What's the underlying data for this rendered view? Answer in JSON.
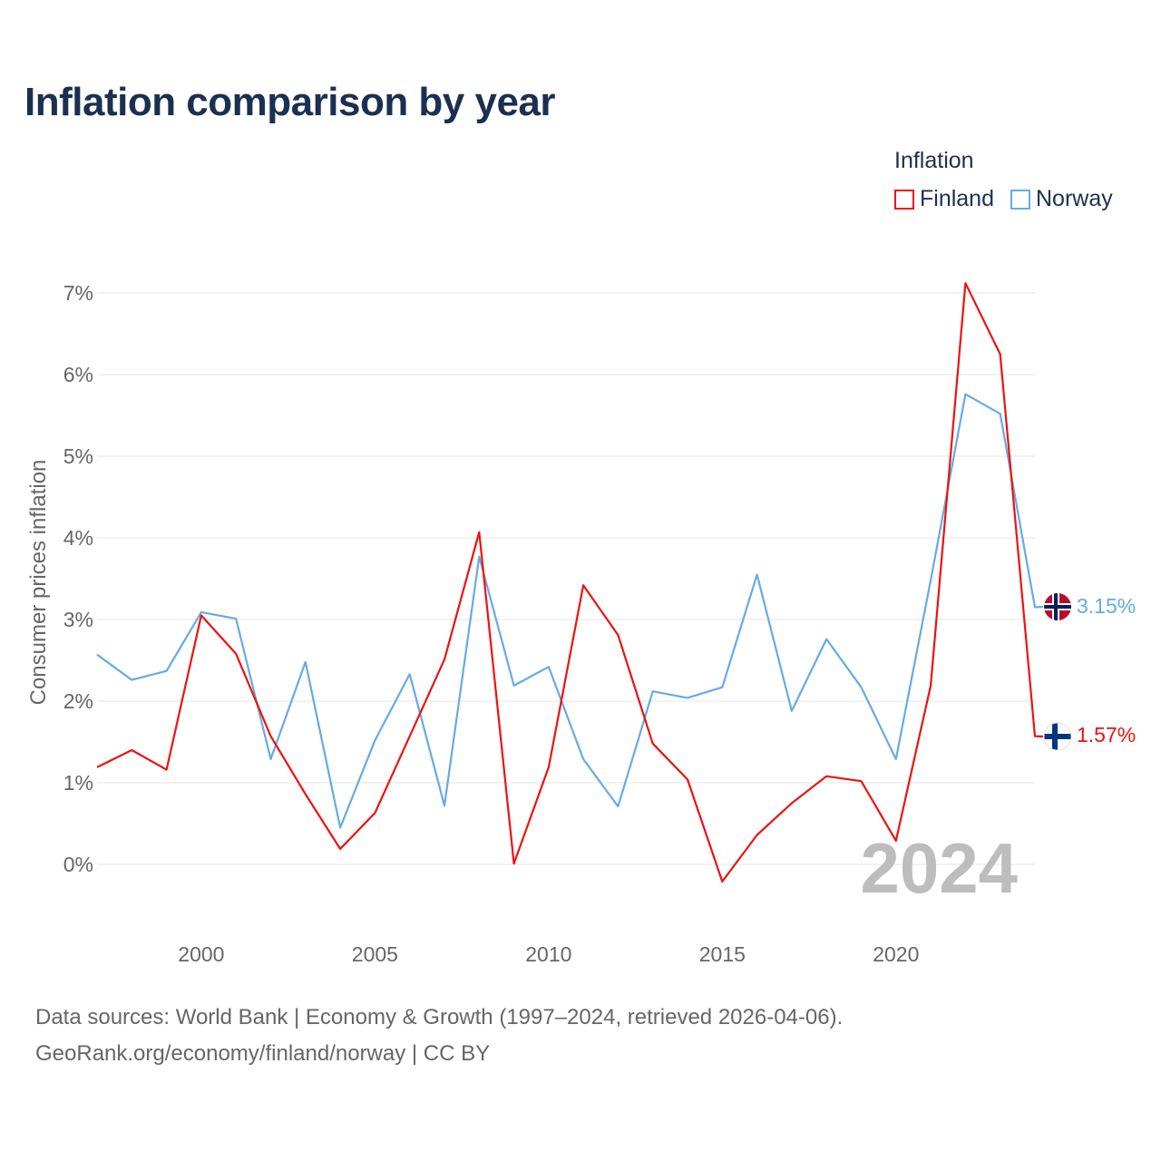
{
  "title": "Inflation comparison by year",
  "legend": {
    "title": "Inflation",
    "items": [
      {
        "label": "Finland",
        "color": "#ee1111"
      },
      {
        "label": "Norway",
        "color": "#66aae6"
      }
    ]
  },
  "footer": {
    "line1": "Data sources: World Bank | Economy & Growth (1997–2024, retrieved 2026-04-06).",
    "line2": "GeoRank.org/economy/finland/norway | CC BY"
  },
  "chart_data": {
    "type": "line",
    "title": "Inflation comparison by year",
    "xlabel": "",
    "ylabel": "Consumer prices inflation",
    "x": [
      1997,
      1998,
      1999,
      2000,
      2001,
      2002,
      2003,
      2004,
      2005,
      2006,
      2007,
      2008,
      2009,
      2010,
      2011,
      2012,
      2013,
      2014,
      2015,
      2016,
      2017,
      2018,
      2019,
      2020,
      2021,
      2022,
      2023,
      2024
    ],
    "xlim": [
      1997,
      2024
    ],
    "ylim": [
      -0.9,
      7.4
    ],
    "xticks": [
      2000,
      2005,
      2010,
      2015,
      2020
    ],
    "yticks": [
      0,
      1,
      2,
      3,
      4,
      5,
      6,
      7
    ],
    "ytick_labels": [
      "0%",
      "1%",
      "2%",
      "3%",
      "4%",
      "5%",
      "6%",
      "7%"
    ],
    "grid": true,
    "legend_position": "top-right",
    "watermark_year": "2024",
    "series": [
      {
        "name": "Finland",
        "color": "#ee1111",
        "end_label": "1.57%",
        "flag": "finland-flag",
        "values": [
          1.19,
          1.4,
          1.16,
          3.05,
          2.58,
          1.57,
          0.86,
          0.19,
          0.63,
          1.57,
          2.51,
          4.07,
          0.01,
          1.19,
          3.42,
          2.81,
          1.48,
          1.04,
          -0.21,
          0.36,
          0.75,
          1.08,
          1.02,
          0.29,
          2.19,
          7.12,
          6.25,
          1.57
        ]
      },
      {
        "name": "Norway",
        "color": "#66aae6",
        "end_label": "3.15%",
        "flag": "norway-flag",
        "values": [
          2.57,
          2.26,
          2.37,
          3.09,
          3.01,
          1.29,
          2.48,
          0.45,
          1.52,
          2.33,
          0.72,
          3.77,
          2.19,
          2.42,
          1.29,
          0.71,
          2.12,
          2.04,
          2.17,
          3.55,
          1.88,
          2.76,
          2.17,
          1.29,
          3.48,
          5.76,
          5.52,
          3.15
        ]
      }
    ]
  }
}
